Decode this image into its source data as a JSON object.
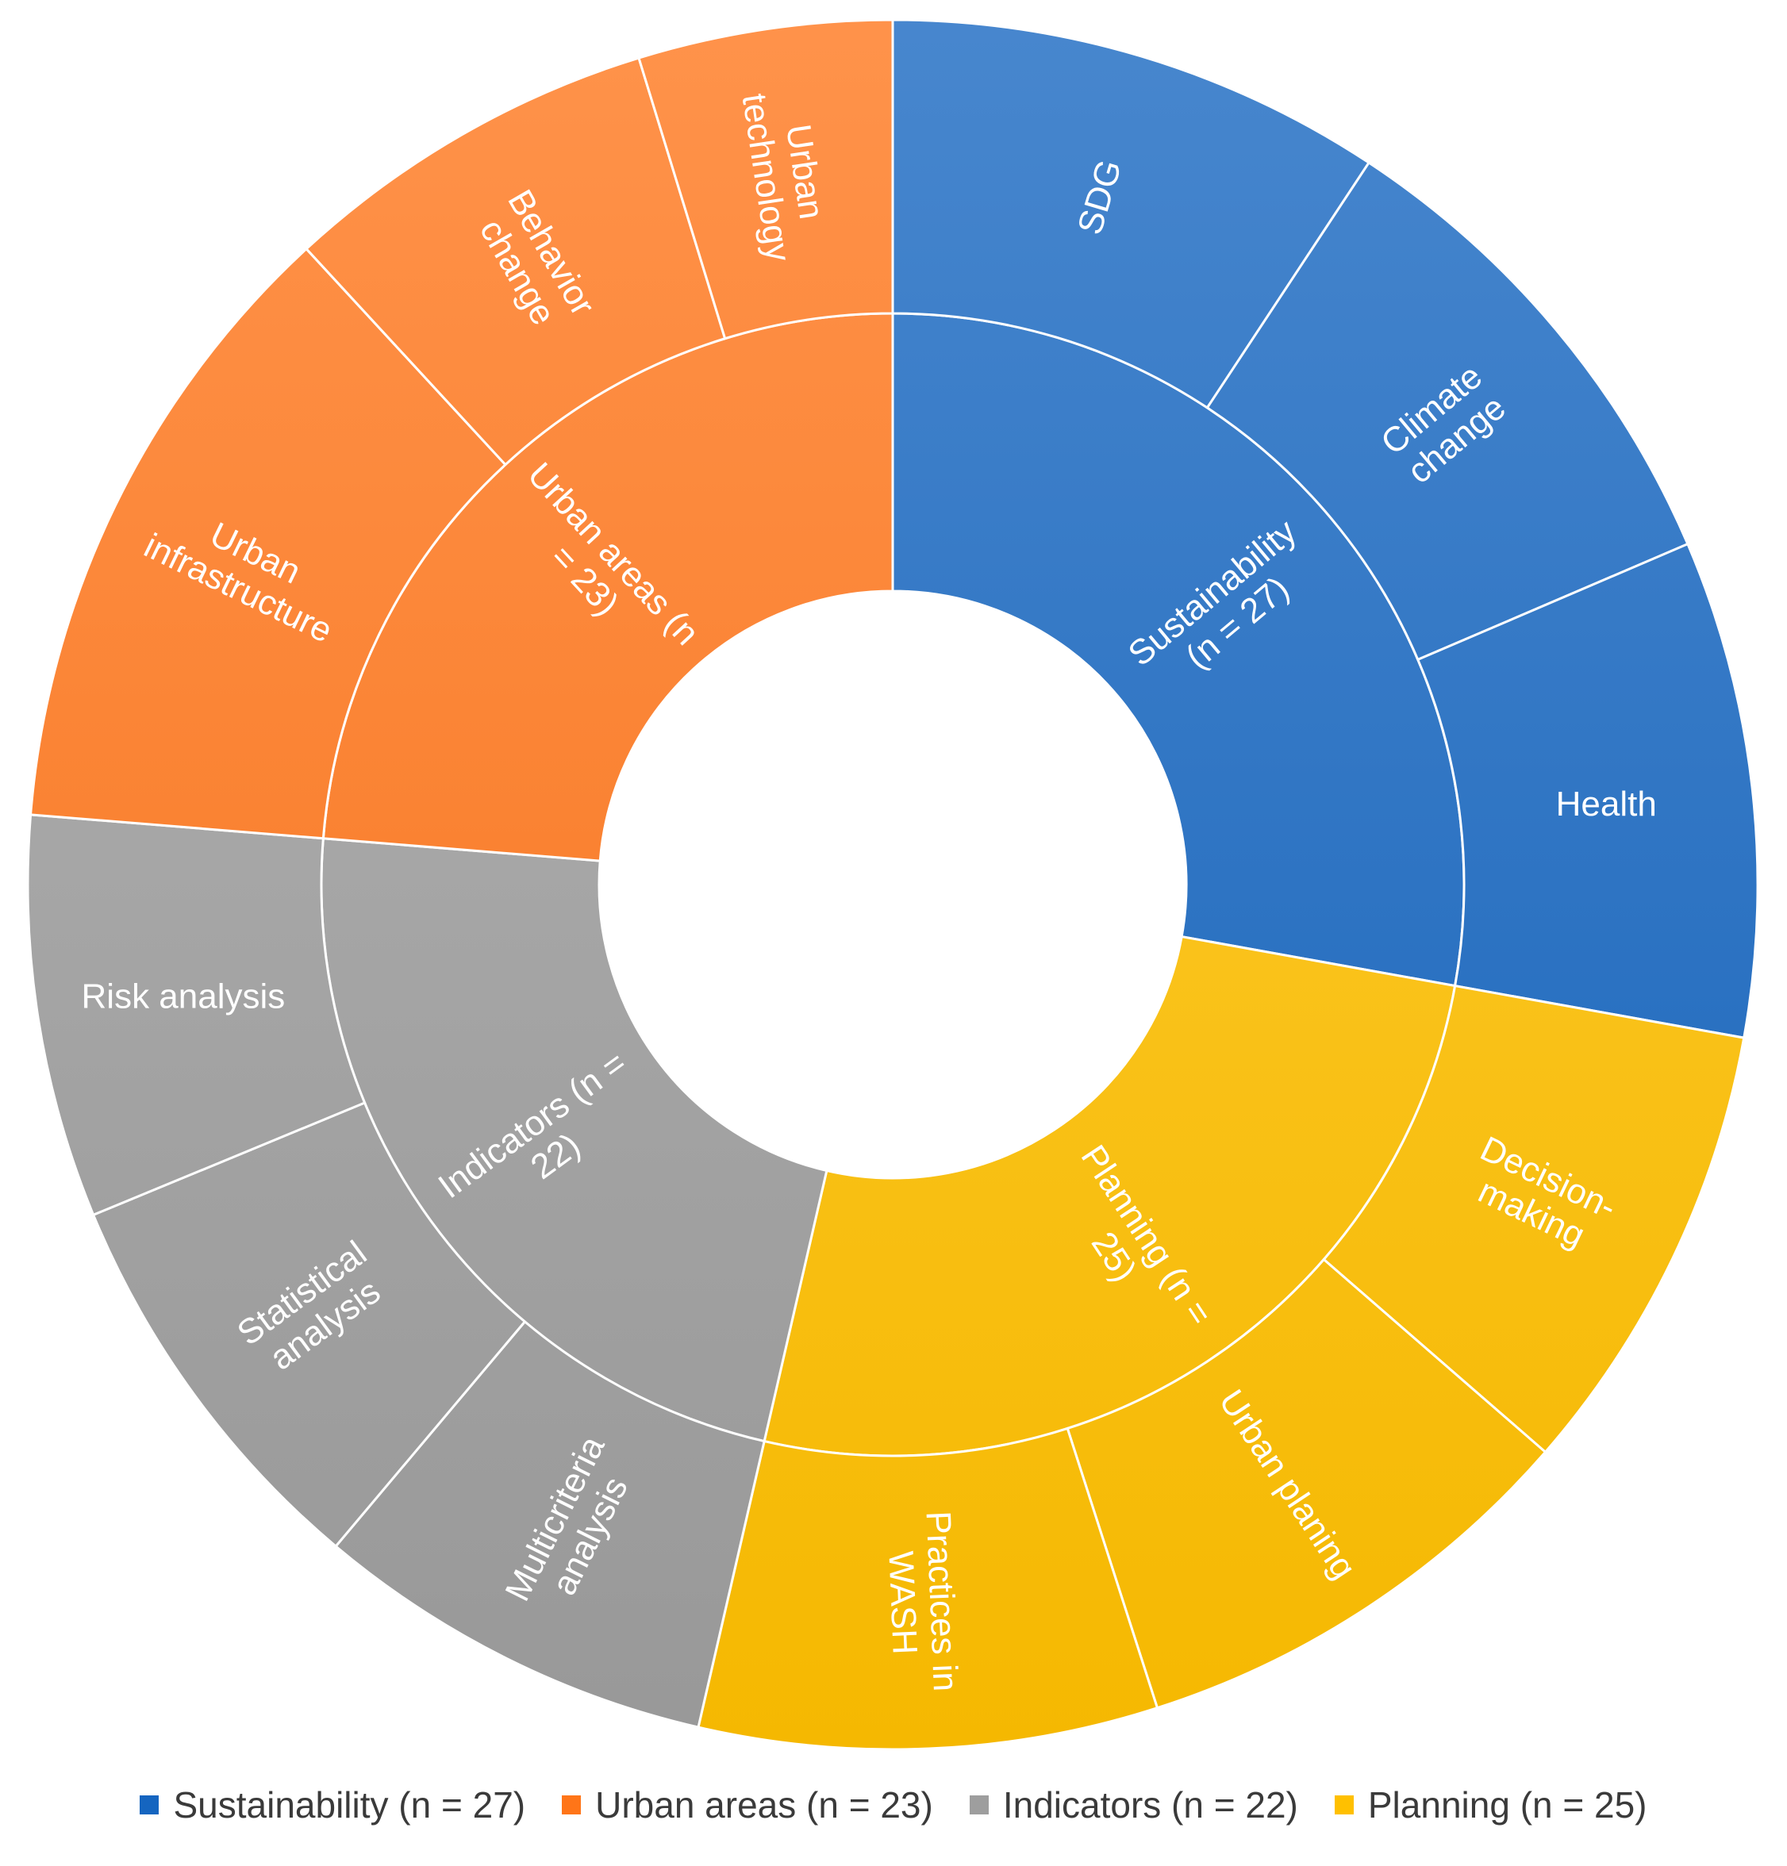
{
  "chart_data": {
    "type": "sunburst",
    "title": "",
    "categories": [
      {
        "name": "Sustainability (n = 27)",
        "label_lines": [
          "Sustainability",
          "(n = 27)"
        ],
        "value": 27,
        "color": "#1565c0",
        "children": [
          {
            "name": "SDG",
            "label_lines": [
              "SDG"
            ],
            "value": 9
          },
          {
            "name": "Climate change",
            "label_lines": [
              "Climate",
              "change"
            ],
            "value": 9
          },
          {
            "name": "Health",
            "label_lines": [
              "Health"
            ],
            "value": 9
          }
        ]
      },
      {
        "name": "Planning (n = 25)",
        "label_lines": [
          "Planning (n =",
          "25)"
        ],
        "value": 25,
        "color": "#ffc000",
        "children": [
          {
            "name": "Decision-making",
            "label_lines": [
              "Decision-",
              "making"
            ],
            "value": 8.3
          },
          {
            "name": "Urban planing",
            "label_lines": [
              "Urban planing"
            ],
            "value": 8.4
          },
          {
            "name": "Practices in WASH",
            "label_lines": [
              "Practices in",
              "WASH"
            ],
            "value": 8.3
          }
        ]
      },
      {
        "name": "Indicators (n = 22)",
        "label_lines": [
          "Indicators (n =",
          "22)"
        ],
        "value": 22,
        "color": "#9e9e9e",
        "children": [
          {
            "name": "Multicriteria analysis",
            "label_lines": [
              "Multicriteria",
              "analysis"
            ],
            "value": 7.3
          },
          {
            "name": "Statistical analysis",
            "label_lines": [
              "Statistical",
              "analysis"
            ],
            "value": 7.4
          },
          {
            "name": "Risk analysis",
            "label_lines": [
              "Risk analysis"
            ],
            "value": 7.3
          }
        ]
      },
      {
        "name": "Urban areas (n = 23)",
        "label_lines": [
          "Urban areas (n",
          "= 23)"
        ],
        "value": 23,
        "color": "#ff7518",
        "children": [
          {
            "name": "Urban infrastructure",
            "label_lines": [
              "Urban",
              "infrastructure"
            ],
            "value": 11.5
          },
          {
            "name": "Behavior change",
            "label_lines": [
              "Behavior",
              "change"
            ],
            "value": 6.9
          },
          {
            "name": "Urban technology",
            "label_lines": [
              "Urban",
              "technology"
            ],
            "value": 4.6
          }
        ]
      }
    ],
    "legend": {
      "position": "bottom",
      "items": [
        {
          "label": "Sustainability (n = 27)",
          "color": "#1565c0"
        },
        {
          "label": "Urban areas (n = 23)",
          "color": "#ff7518"
        },
        {
          "label": "Indicators (n = 22)",
          "color": "#9e9e9e"
        },
        {
          "label": "Planning (n = 25)",
          "color": "#ffc000"
        }
      ]
    }
  }
}
